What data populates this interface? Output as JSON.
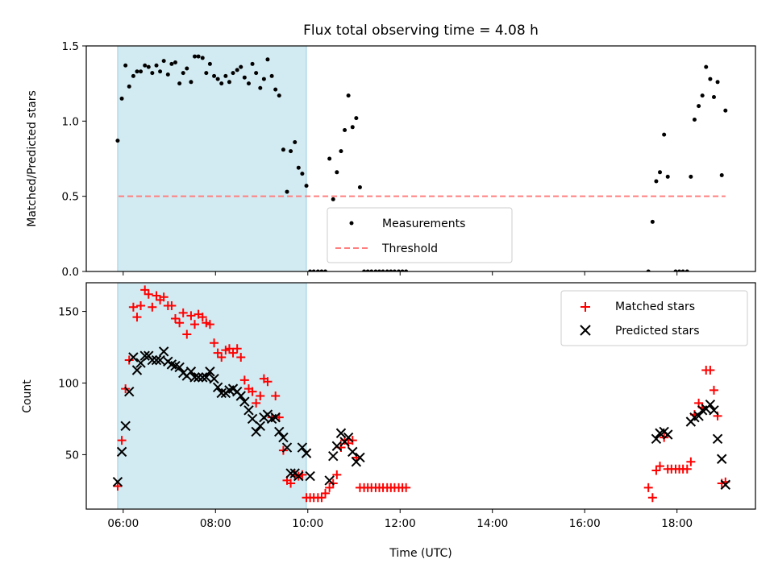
{
  "chart_data": [
    {
      "type": "scatter",
      "title": "Flux total observing time = 4.08 h",
      "xlabel": "",
      "ylabel": "Matched/Predicted stars",
      "ylim": [
        0,
        1.5
      ],
      "yticks": [
        "0.0",
        "0.5",
        "1.0",
        "1.5"
      ],
      "xlim": [
        5.2,
        19.7
      ],
      "shaded_span": [
        5.88,
        9.97
      ],
      "shaded_color": "#add8e6",
      "threshold": {
        "name": "Threshold",
        "value": 0.5,
        "x_range": [
          5.9,
          19.05
        ],
        "color": "#ff7f7f"
      },
      "legend_position": "lower-center",
      "series": [
        {
          "name": "Measurements",
          "color": "#000000",
          "marker": "dot",
          "points": [
            [
              5.88,
              0.87
            ],
            [
              5.97,
              1.15
            ],
            [
              6.05,
              1.37
            ],
            [
              6.13,
              1.23
            ],
            [
              6.22,
              1.3
            ],
            [
              6.3,
              1.33
            ],
            [
              6.38,
              1.33
            ],
            [
              6.47,
              1.37
            ],
            [
              6.55,
              1.36
            ],
            [
              6.63,
              1.32
            ],
            [
              6.72,
              1.37
            ],
            [
              6.8,
              1.33
            ],
            [
              6.88,
              1.4
            ],
            [
              6.97,
              1.31
            ],
            [
              7.05,
              1.38
            ],
            [
              7.13,
              1.39
            ],
            [
              7.22,
              1.25
            ],
            [
              7.3,
              1.32
            ],
            [
              7.38,
              1.35
            ],
            [
              7.47,
              1.26
            ],
            [
              7.55,
              1.43
            ],
            [
              7.63,
              1.43
            ],
            [
              7.72,
              1.42
            ],
            [
              7.8,
              1.32
            ],
            [
              7.88,
              1.38
            ],
            [
              7.97,
              1.3
            ],
            [
              8.05,
              1.28
            ],
            [
              8.13,
              1.25
            ],
            [
              8.22,
              1.3
            ],
            [
              8.3,
              1.26
            ],
            [
              8.38,
              1.32
            ],
            [
              8.47,
              1.34
            ],
            [
              8.55,
              1.36
            ],
            [
              8.63,
              1.29
            ],
            [
              8.72,
              1.25
            ],
            [
              8.8,
              1.38
            ],
            [
              8.88,
              1.32
            ],
            [
              8.97,
              1.22
            ],
            [
              9.05,
              1.28
            ],
            [
              9.13,
              1.41
            ],
            [
              9.22,
              1.3
            ],
            [
              9.3,
              1.21
            ],
            [
              9.38,
              1.17
            ],
            [
              9.47,
              0.81
            ],
            [
              9.55,
              0.53
            ],
            [
              9.63,
              0.8
            ],
            [
              9.72,
              0.86
            ],
            [
              9.8,
              0.69
            ],
            [
              9.88,
              0.65
            ],
            [
              9.97,
              0.57
            ],
            [
              10.05,
              0.0
            ],
            [
              10.13,
              0.0
            ],
            [
              10.22,
              0.0
            ],
            [
              10.3,
              0.0
            ],
            [
              10.38,
              0.0
            ],
            [
              10.47,
              0.75
            ],
            [
              10.55,
              0.48
            ],
            [
              10.63,
              0.66
            ],
            [
              10.72,
              0.8
            ],
            [
              10.8,
              0.94
            ],
            [
              10.88,
              1.17
            ],
            [
              10.97,
              0.96
            ],
            [
              11.05,
              1.02
            ],
            [
              11.13,
              0.56
            ],
            [
              11.22,
              0.0
            ],
            [
              11.3,
              0.0
            ],
            [
              11.38,
              0.0
            ],
            [
              11.47,
              0.0
            ],
            [
              11.55,
              0.0
            ],
            [
              11.63,
              0.0
            ],
            [
              11.72,
              0.0
            ],
            [
              11.8,
              0.0
            ],
            [
              11.88,
              0.0
            ],
            [
              11.97,
              0.0
            ],
            [
              12.05,
              0.0
            ],
            [
              12.13,
              0.0
            ],
            [
              17.38,
              0.0
            ],
            [
              17.47,
              0.33
            ],
            [
              17.55,
              0.6
            ],
            [
              17.63,
              0.66
            ],
            [
              17.72,
              0.91
            ],
            [
              17.8,
              0.63
            ],
            [
              17.97,
              0.0
            ],
            [
              18.05,
              0.0
            ],
            [
              18.13,
              0.0
            ],
            [
              18.22,
              0.0
            ],
            [
              18.3,
              0.63
            ],
            [
              18.38,
              1.01
            ],
            [
              18.47,
              1.1
            ],
            [
              18.55,
              1.17
            ],
            [
              18.63,
              1.36
            ],
            [
              18.72,
              1.28
            ],
            [
              18.8,
              1.16
            ],
            [
              18.88,
              1.26
            ],
            [
              18.97,
              0.64
            ],
            [
              19.05,
              1.07
            ]
          ]
        }
      ]
    },
    {
      "type": "scatter",
      "title": "",
      "xlabel": "Time (UTC)",
      "ylabel": "Count",
      "ylim": [
        12,
        170
      ],
      "yticks": [
        "50",
        "100",
        "150"
      ],
      "ytick_values": [
        50,
        100,
        150
      ],
      "xlim": [
        5.2,
        19.7
      ],
      "xticks": [
        "06:00",
        "08:00",
        "10:00",
        "12:00",
        "14:00",
        "16:00",
        "18:00"
      ],
      "xtick_values": [
        6,
        8,
        10,
        12,
        14,
        16,
        18
      ],
      "shaded_span": [
        5.88,
        9.97
      ],
      "shaded_color": "#add8e6",
      "legend_position": "top-right",
      "series": [
        {
          "name": "Matched stars",
          "color": "#ff0000",
          "marker": "plus",
          "points": [
            [
              5.88,
              28
            ],
            [
              5.97,
              60
            ],
            [
              6.05,
              96
            ],
            [
              6.13,
              116
            ],
            [
              6.22,
              153
            ],
            [
              6.3,
              146
            ],
            [
              6.38,
              154
            ],
            [
              6.47,
              165
            ],
            [
              6.55,
              162
            ],
            [
              6.63,
              153
            ],
            [
              6.72,
              161
            ],
            [
              6.8,
              158
            ],
            [
              6.88,
              160
            ],
            [
              6.97,
              154
            ],
            [
              7.05,
              154
            ],
            [
              7.13,
              145
            ],
            [
              7.22,
              142
            ],
            [
              7.3,
              149
            ],
            [
              7.38,
              134
            ],
            [
              7.47,
              147
            ],
            [
              7.55,
              141
            ],
            [
              7.63,
              148
            ],
            [
              7.72,
              146
            ],
            [
              7.8,
              142
            ],
            [
              7.88,
              141
            ],
            [
              7.97,
              128
            ],
            [
              8.05,
              121
            ],
            [
              8.13,
              118
            ],
            [
              8.22,
              123
            ],
            [
              8.3,
              124
            ],
            [
              8.38,
              121
            ],
            [
              8.47,
              124
            ],
            [
              8.55,
              118
            ],
            [
              8.63,
              102
            ],
            [
              8.72,
              96
            ],
            [
              8.8,
              94
            ],
            [
              8.88,
              86
            ],
            [
              8.97,
              91
            ],
            [
              9.05,
              103
            ],
            [
              9.13,
              101
            ],
            [
              9.22,
              76
            ],
            [
              9.3,
              91
            ],
            [
              9.38,
              76
            ],
            [
              9.47,
              53
            ],
            [
              9.55,
              32
            ],
            [
              9.63,
              30
            ],
            [
              9.72,
              36
            ],
            [
              9.8,
              35
            ],
            [
              9.88,
              36
            ],
            [
              9.97,
              20
            ],
            [
              10.05,
              20
            ],
            [
              10.13,
              20
            ],
            [
              10.22,
              20
            ],
            [
              10.3,
              20
            ],
            [
              10.38,
              23
            ],
            [
              10.47,
              27
            ],
            [
              10.55,
              30
            ],
            [
              10.63,
              36
            ],
            [
              10.72,
              55
            ],
            [
              10.8,
              60
            ],
            [
              10.88,
              58
            ],
            [
              10.97,
              60
            ],
            [
              11.05,
              48
            ],
            [
              11.13,
              27
            ],
            [
              11.22,
              27
            ],
            [
              11.3,
              27
            ],
            [
              11.38,
              27
            ],
            [
              11.47,
              27
            ],
            [
              11.55,
              27
            ],
            [
              11.63,
              27
            ],
            [
              11.72,
              27
            ],
            [
              11.8,
              27
            ],
            [
              11.88,
              27
            ],
            [
              11.97,
              27
            ],
            [
              12.05,
              27
            ],
            [
              12.13,
              27
            ],
            [
              17.38,
              27
            ],
            [
              17.47,
              20
            ],
            [
              17.55,
              39
            ],
            [
              17.63,
              42
            ],
            [
              17.72,
              62
            ],
            [
              17.8,
              40
            ],
            [
              17.88,
              40
            ],
            [
              17.97,
              40
            ],
            [
              18.05,
              40
            ],
            [
              18.13,
              40
            ],
            [
              18.22,
              40
            ],
            [
              18.3,
              45
            ],
            [
              18.38,
              78
            ],
            [
              18.47,
              86
            ],
            [
              18.55,
              83
            ],
            [
              18.63,
              109
            ],
            [
              18.72,
              109
            ],
            [
              18.8,
              95
            ],
            [
              18.88,
              77
            ],
            [
              18.97,
              30
            ],
            [
              19.05,
              31
            ]
          ]
        },
        {
          "name": "Predicted stars",
          "color": "#000000",
          "marker": "x",
          "points": [
            [
              5.88,
              31
            ],
            [
              5.97,
              52
            ],
            [
              6.05,
              70
            ],
            [
              6.13,
              94
            ],
            [
              6.22,
              118
            ],
            [
              6.3,
              109
            ],
            [
              6.38,
              114
            ],
            [
              6.47,
              119
            ],
            [
              6.55,
              119
            ],
            [
              6.63,
              116
            ],
            [
              6.72,
              116
            ],
            [
              6.8,
              116
            ],
            [
              6.88,
              122
            ],
            [
              6.97,
              115
            ],
            [
              7.05,
              113
            ],
            [
              7.13,
              112
            ],
            [
              7.22,
              111
            ],
            [
              7.3,
              107
            ],
            [
              7.38,
              105
            ],
            [
              7.47,
              108
            ],
            [
              7.55,
              104
            ],
            [
              7.63,
              104
            ],
            [
              7.72,
              104
            ],
            [
              7.8,
              104
            ],
            [
              7.88,
              108
            ],
            [
              7.97,
              103
            ],
            [
              8.05,
              97
            ],
            [
              8.13,
              93
            ],
            [
              8.22,
              93
            ],
            [
              8.3,
              95
            ],
            [
              8.38,
              96
            ],
            [
              8.47,
              94
            ],
            [
              8.55,
              91
            ],
            [
              8.63,
              87
            ],
            [
              8.72,
              81
            ],
            [
              8.8,
              75
            ],
            [
              8.88,
              66
            ],
            [
              8.97,
              70
            ],
            [
              9.05,
              76
            ],
            [
              9.13,
              78
            ],
            [
              9.22,
              75
            ],
            [
              9.3,
              76
            ],
            [
              9.38,
              66
            ],
            [
              9.47,
              62
            ],
            [
              9.55,
              55
            ],
            [
              9.63,
              37
            ],
            [
              9.72,
              37
            ],
            [
              9.8,
              35
            ],
            [
              9.88,
              55
            ],
            [
              9.97,
              51
            ],
            [
              10.05,
              35
            ],
            [
              10.47,
              32
            ],
            [
              10.55,
              49
            ],
            [
              10.63,
              56
            ],
            [
              10.72,
              65
            ],
            [
              10.8,
              59
            ],
            [
              10.88,
              62
            ],
            [
              10.97,
              52
            ],
            [
              11.05,
              45
            ],
            [
              11.13,
              48
            ],
            [
              17.55,
              61
            ],
            [
              17.63,
              65
            ],
            [
              17.72,
              66
            ],
            [
              17.8,
              64
            ],
            [
              18.3,
              73
            ],
            [
              18.38,
              76
            ],
            [
              18.47,
              77
            ],
            [
              18.55,
              81
            ],
            [
              18.63,
              82
            ],
            [
              18.72,
              85
            ],
            [
              18.8,
              81
            ],
            [
              18.88,
              61
            ],
            [
              18.97,
              47
            ],
            [
              19.05,
              29
            ]
          ]
        }
      ]
    }
  ]
}
